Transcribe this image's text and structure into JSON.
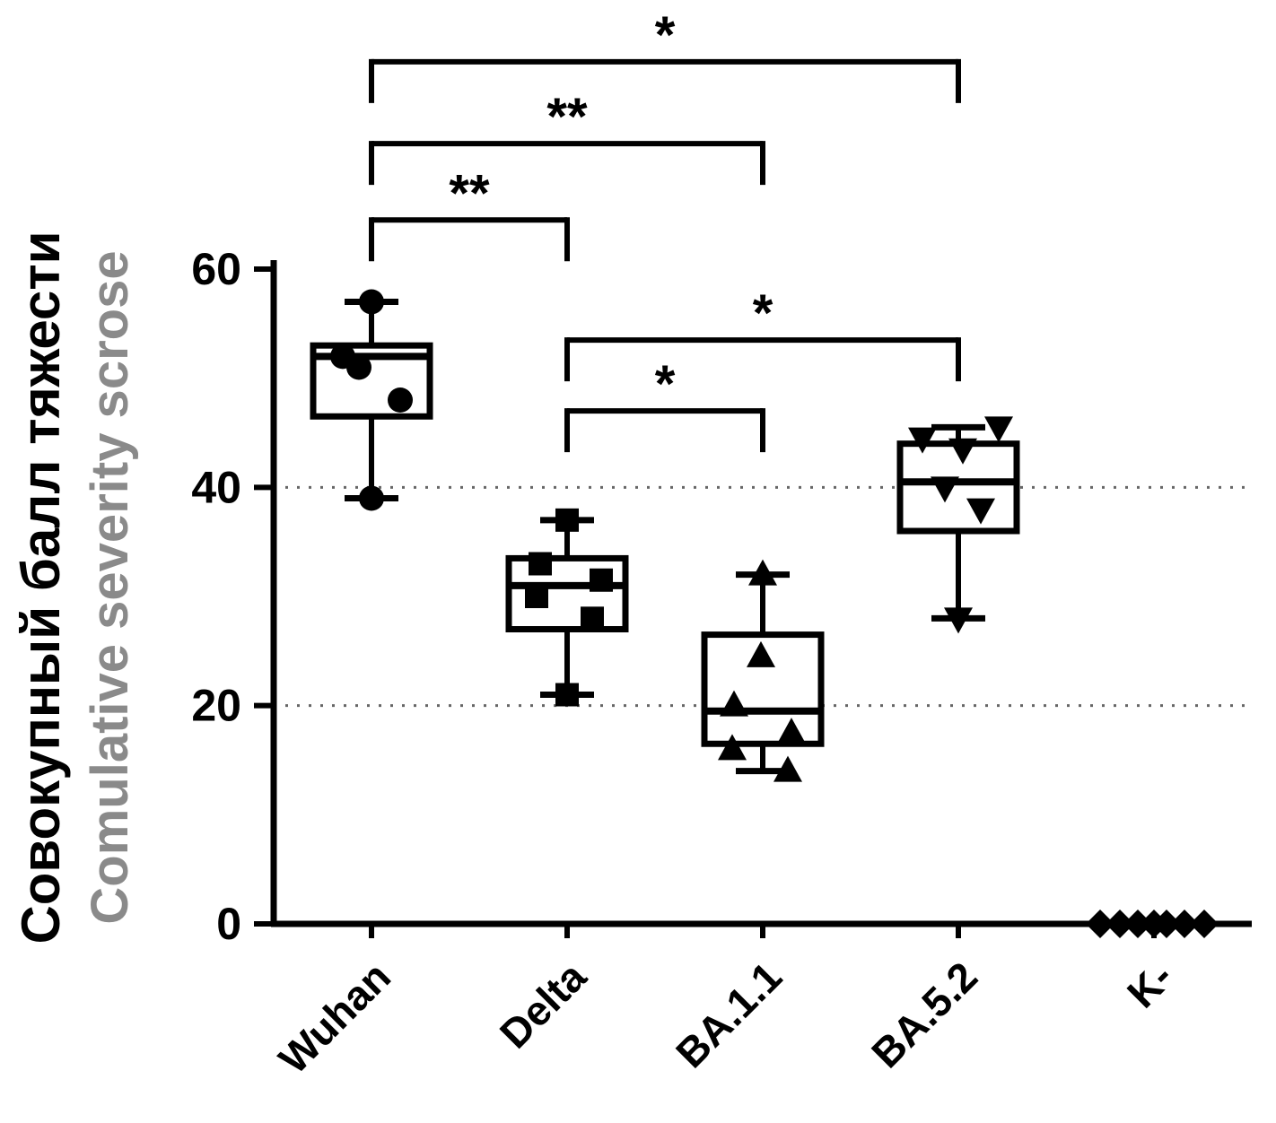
{
  "chart_data": {
    "type": "box",
    "title": "",
    "ylabel_primary": "Совокупный балл тяжести",
    "ylabel_secondary": "Comulative severity scrose",
    "xlabel": "",
    "categories": [
      "Wuhan",
      "Delta",
      "BA.1.1",
      "BA.5.2",
      "K-"
    ],
    "ylim": [
      0,
      60
    ],
    "yticks": [
      0,
      20,
      40,
      60
    ],
    "gridlines": [
      20,
      40
    ],
    "legend": "none",
    "grid": "dotted-horizontal",
    "groups": [
      {
        "name": "Wuhan",
        "marker": "circle",
        "stats": {
          "min": 39,
          "q1": 46.5,
          "median": 52,
          "q3": 53,
          "max": 57
        },
        "points": [
          {
            "v": 57,
            "dx": 0
          },
          {
            "v": 52,
            "dx": -32
          },
          {
            "v": 51,
            "dx": -14
          },
          {
            "v": 48,
            "dx": 32
          },
          {
            "v": 39,
            "dx": 0
          }
        ]
      },
      {
        "name": "Delta",
        "marker": "square",
        "stats": {
          "min": 21,
          "q1": 27,
          "median": 31,
          "q3": 33.5,
          "max": 37
        },
        "points": [
          {
            "v": 37,
            "dx": 0
          },
          {
            "v": 33,
            "dx": -30
          },
          {
            "v": 31.5,
            "dx": 38
          },
          {
            "v": 30,
            "dx": -34
          },
          {
            "v": 28,
            "dx": 28
          },
          {
            "v": 21,
            "dx": 0
          }
        ]
      },
      {
        "name": "BA.1.1",
        "marker": "triangle-up",
        "stats": {
          "min": 14,
          "q1": 16.5,
          "median": 19.5,
          "q3": 26.5,
          "max": 32
        },
        "points": [
          {
            "v": 32,
            "dx": 0
          },
          {
            "v": 24.5,
            "dx": -2
          },
          {
            "v": 20,
            "dx": -32
          },
          {
            "v": 17.5,
            "dx": 32
          },
          {
            "v": 16,
            "dx": -34
          },
          {
            "v": 14,
            "dx": 28
          }
        ]
      },
      {
        "name": "BA.5.2",
        "marker": "triangle-down",
        "stats": {
          "min": 28,
          "q1": 36,
          "median": 40.5,
          "q3": 44,
          "max": 45.5
        },
        "points": [
          {
            "v": 45.5,
            "dx": 45
          },
          {
            "v": 44.5,
            "dx": -40
          },
          {
            "v": 43.5,
            "dx": 5
          },
          {
            "v": 40,
            "dx": -15
          },
          {
            "v": 38,
            "dx": 25
          },
          {
            "v": 28,
            "dx": 0
          }
        ]
      },
      {
        "name": "K-",
        "marker": "diamond",
        "stats": null,
        "points": [
          {
            "v": 0,
            "dx": -60
          },
          {
            "v": 0,
            "dx": -38
          },
          {
            "v": 0,
            "dx": -18
          },
          {
            "v": 0,
            "dx": 0
          },
          {
            "v": 0,
            "dx": 14
          },
          {
            "v": 0,
            "dx": 34
          },
          {
            "v": 0,
            "dx": 56
          }
        ]
      }
    ],
    "brackets": [
      {
        "from": 0,
        "to": 3,
        "y": 79,
        "label": "*"
      },
      {
        "from": 0,
        "to": 2,
        "y": 71.5,
        "label": "**"
      },
      {
        "from": 0,
        "to": 1,
        "y": 64.5,
        "label": "**"
      },
      {
        "from": 1,
        "to": 3,
        "y": 53.5,
        "label": "*"
      },
      {
        "from": 1,
        "to": 2,
        "y": 47,
        "label": "*"
      }
    ],
    "colors": {
      "box_stroke": "#000000",
      "marker_fill": "#000000",
      "grid": "#666666",
      "axis": "#000000",
      "ylabel_primary_color": "#000000",
      "ylabel_secondary_color": "#8a8a8a"
    }
  }
}
